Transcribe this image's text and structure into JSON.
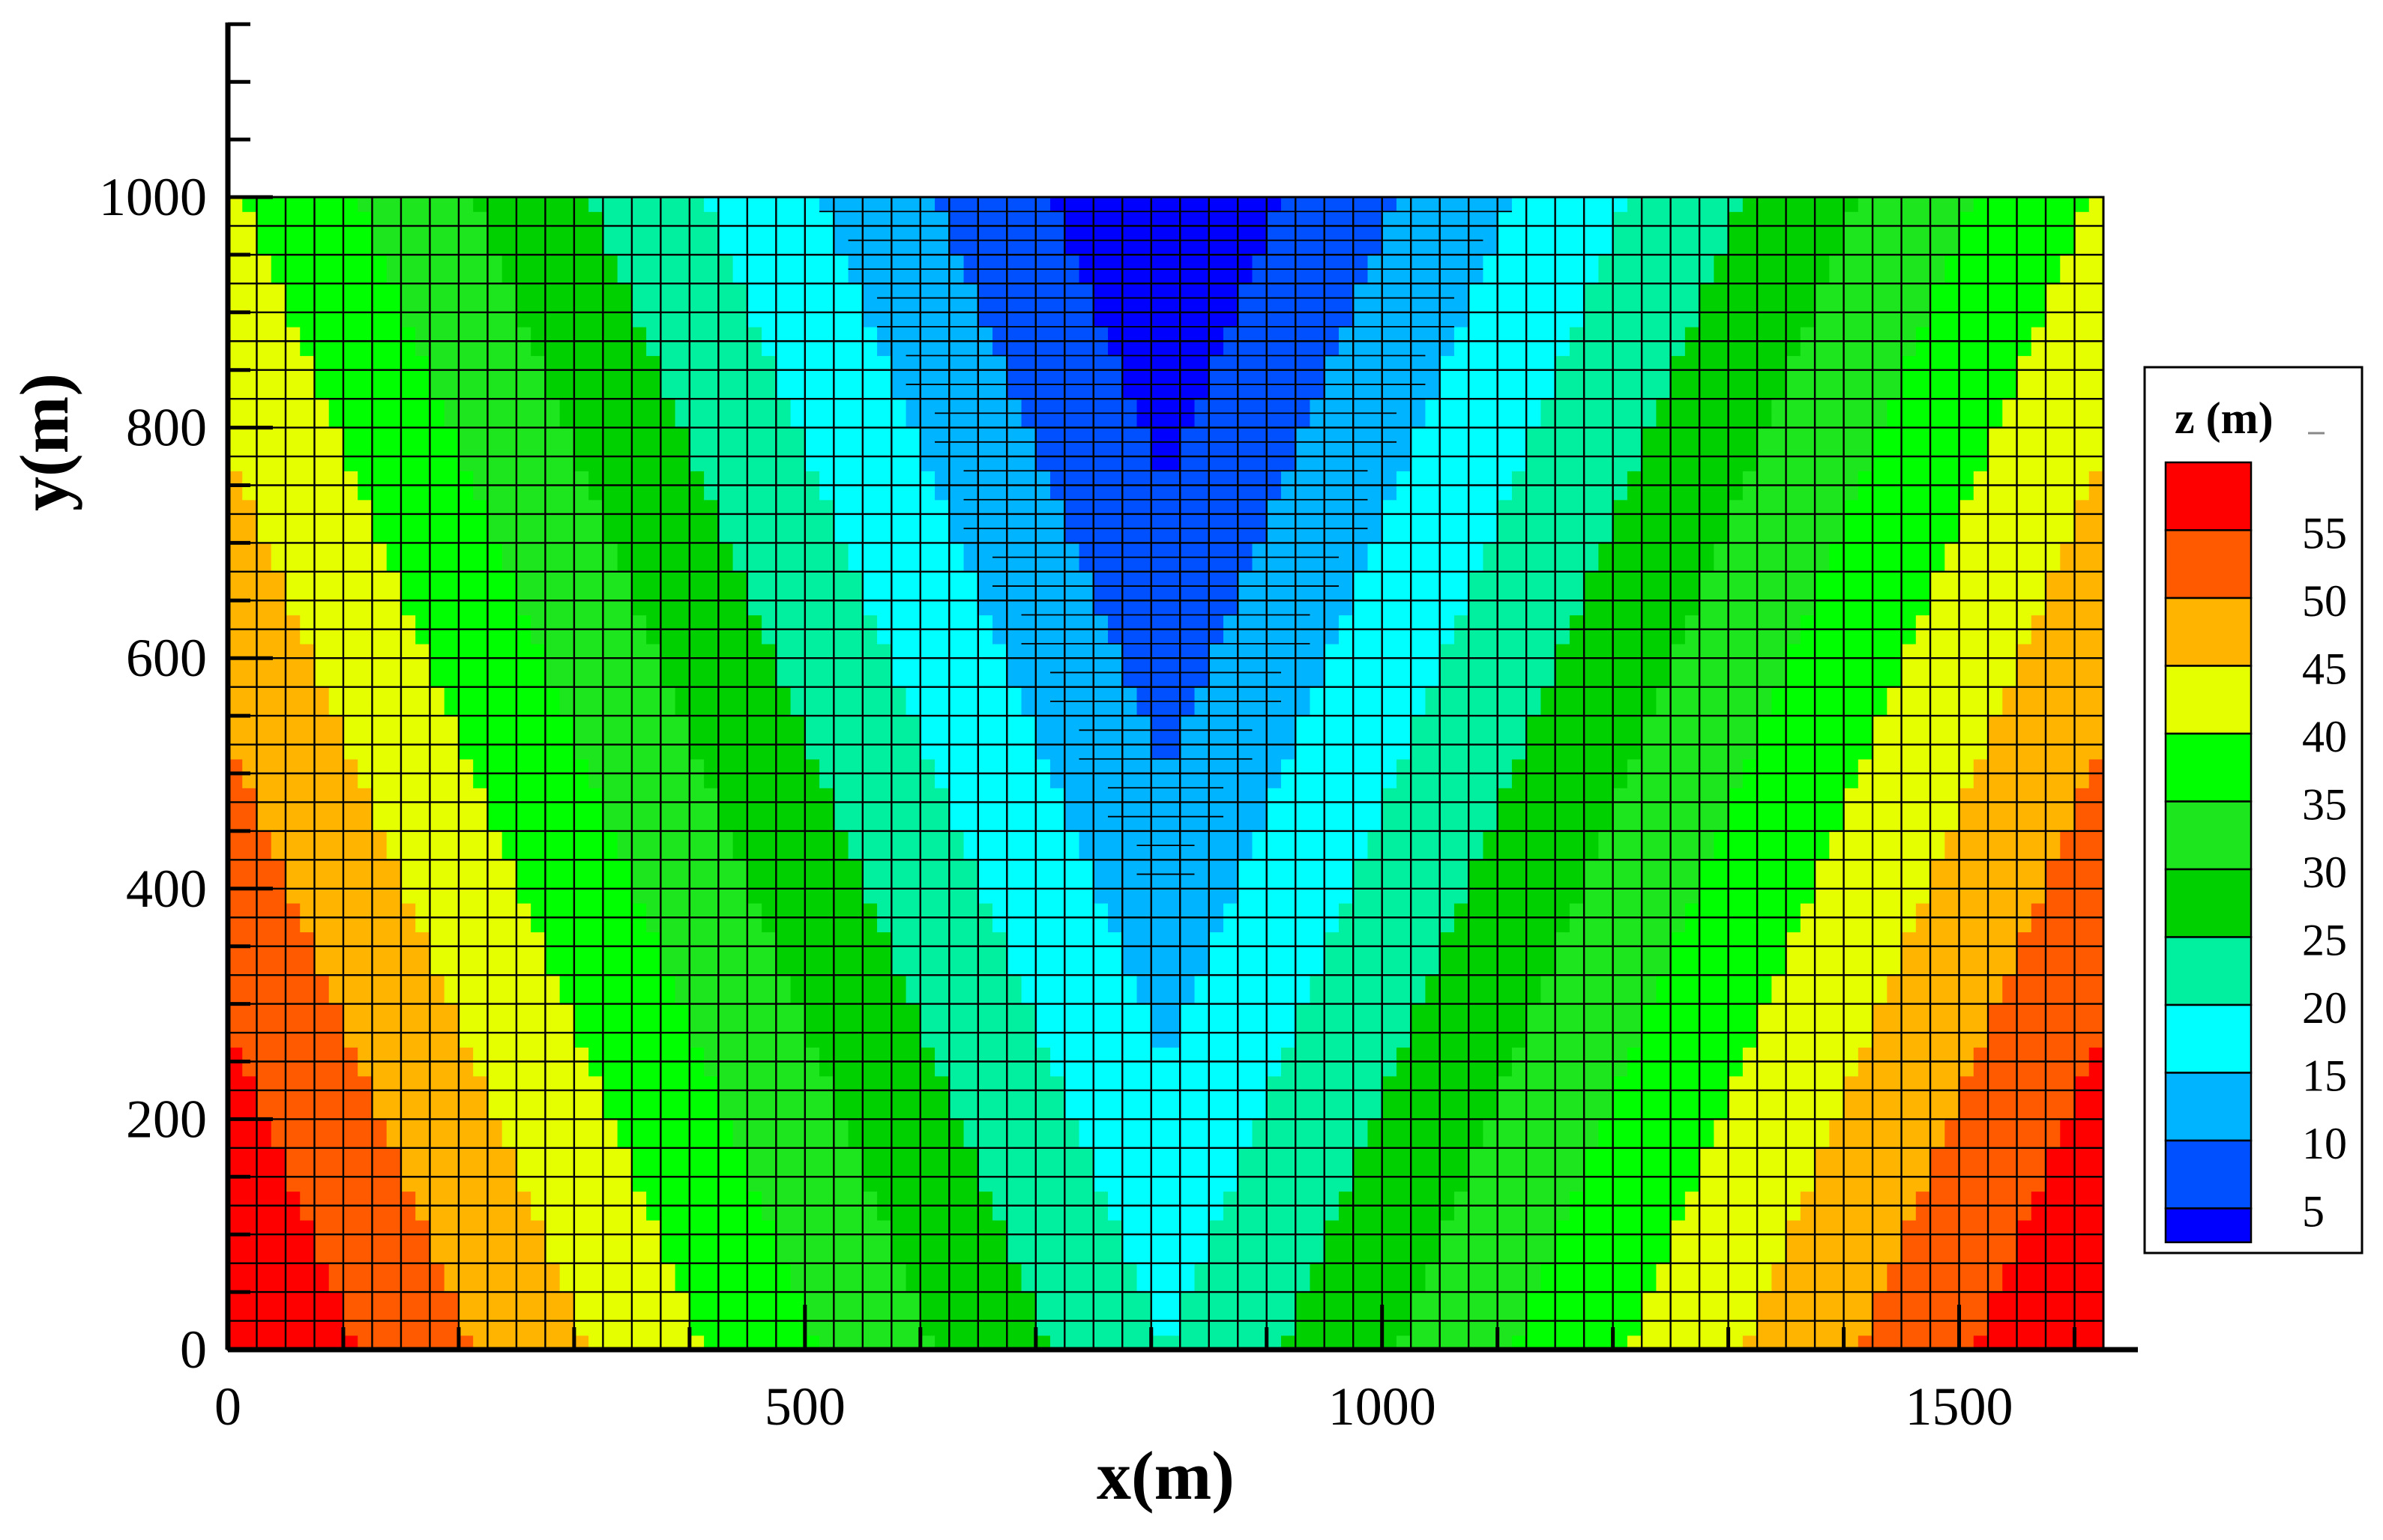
{
  "chart_data": {
    "type": "heatmap",
    "title": "",
    "xlabel": "x(m)",
    "ylabel": "y(m)",
    "xlim": [
      0,
      1625
    ],
    "ylim": [
      0,
      1150
    ],
    "domain": {
      "x": [
        0,
        1625
      ],
      "y": [
        0,
        1000
      ]
    },
    "x_ticks": [
      {
        "value": 0,
        "label": "0"
      },
      {
        "value": 500,
        "label": "500"
      },
      {
        "value": 1000,
        "label": "1000"
      },
      {
        "value": 1500,
        "label": "1500"
      }
    ],
    "y_ticks": [
      {
        "value": 0,
        "label": "0"
      },
      {
        "value": 200,
        "label": "200"
      },
      {
        "value": 400,
        "label": "400"
      },
      {
        "value": 600,
        "label": "600"
      },
      {
        "value": 800,
        "label": "800"
      },
      {
        "value": 1000,
        "label": "1000"
      }
    ],
    "field": {
      "description": "V-shaped valley bathymetry, minimum along x = 812.5 m",
      "center_x": 812.5,
      "z_at_center_bottom": 20,
      "z_at_center_top": 0,
      "z_slope_per_m_x": 0.05
    },
    "grid": {
      "cell_size_m": 25,
      "refined_cell_size_m": 12.5,
      "refined_region": {
        "y_min": 400,
        "y_max": 1000,
        "x_center": 812.5,
        "half_width_at_y_min": 25,
        "half_width_at_y_max": 300
      }
    },
    "legend": {
      "title": "z (m)",
      "position": "right",
      "levels": [
        {
          "label": "55",
          "color": "#ff0000"
        },
        {
          "label": "50",
          "color": "#ff5a00"
        },
        {
          "label": "45",
          "color": "#ffb400"
        },
        {
          "label": "40",
          "color": "#e6ff00"
        },
        {
          "label": "35",
          "color": "#00ff00"
        },
        {
          "label": "30",
          "color": "#1ee61e"
        },
        {
          "label": "25",
          "color": "#00d000"
        },
        {
          "label": "20",
          "color": "#00f0a0"
        },
        {
          "label": "15",
          "color": "#00ffff"
        },
        {
          "label": "10",
          "color": "#00b4ff"
        },
        {
          "label": "5",
          "color": "#0050ff"
        },
        {
          "label": "",
          "color": "#0000ff"
        }
      ]
    }
  }
}
